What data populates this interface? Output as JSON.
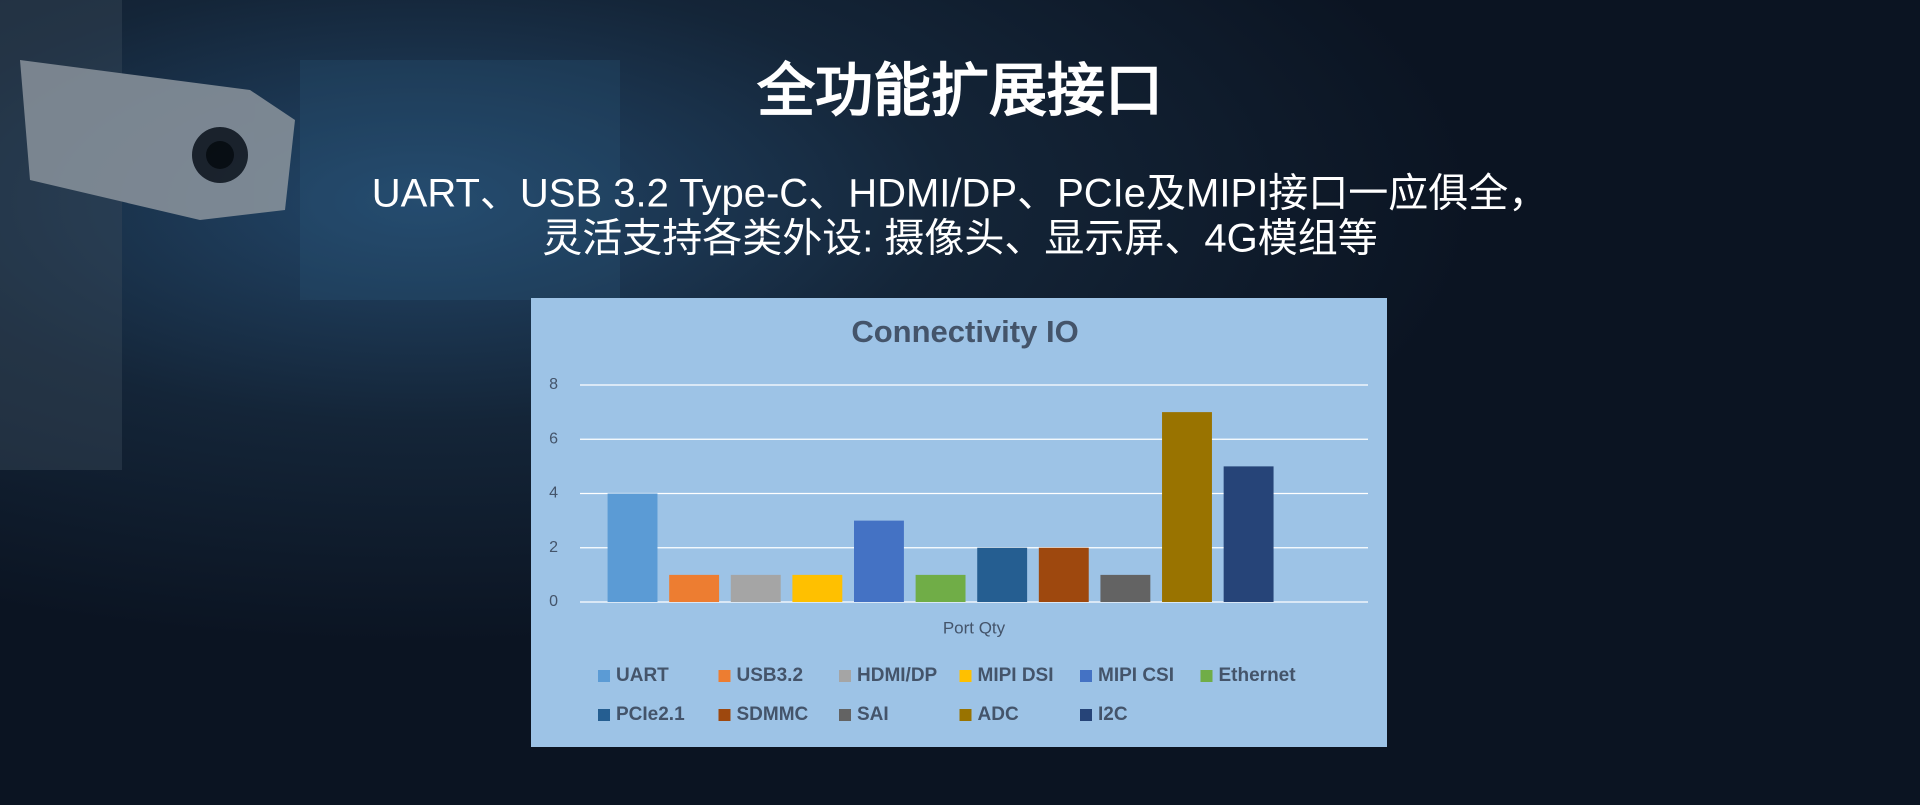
{
  "header": {
    "title": "全功能扩展接口",
    "subtitle": [
      "UART、USB 3.2 Type-C、HDMI/DP、PCIe及MIPI接口一应俱全，",
      "灵活支持各类外设: 摄像头、显示屏、4G模组等"
    ]
  },
  "chart_data": {
    "type": "bar",
    "title": "Connectivity IO",
    "categories": [
      "Port Qty"
    ],
    "series": [
      {
        "name": "UART",
        "color": "#5b9bd5",
        "values": [
          4
        ]
      },
      {
        "name": "USB3.2",
        "color": "#ed7d31",
        "values": [
          1
        ]
      },
      {
        "name": "HDMI/DP",
        "color": "#a5a5a5",
        "values": [
          1
        ]
      },
      {
        "name": "MIPI DSI",
        "color": "#ffc000",
        "values": [
          1
        ]
      },
      {
        "name": "MIPI CSI",
        "color": "#4472c4",
        "values": [
          3
        ]
      },
      {
        "name": "Ethernet",
        "color": "#70ad47",
        "values": [
          1
        ]
      },
      {
        "name": "PCIe2.1",
        "color": "#255e91",
        "values": [
          2
        ]
      },
      {
        "name": "SDMMC",
        "color": "#9e480e",
        "values": [
          2
        ]
      },
      {
        "name": "SAI",
        "color": "#636363",
        "values": [
          1
        ]
      },
      {
        "name": "ADC",
        "color": "#997300",
        "values": [
          7
        ]
      },
      {
        "name": "I2C",
        "color": "#264478",
        "values": [
          5
        ]
      }
    ],
    "ylim": [
      0,
      8
    ],
    "yticks": [
      0,
      2,
      4,
      6,
      8
    ],
    "grid": true
  }
}
